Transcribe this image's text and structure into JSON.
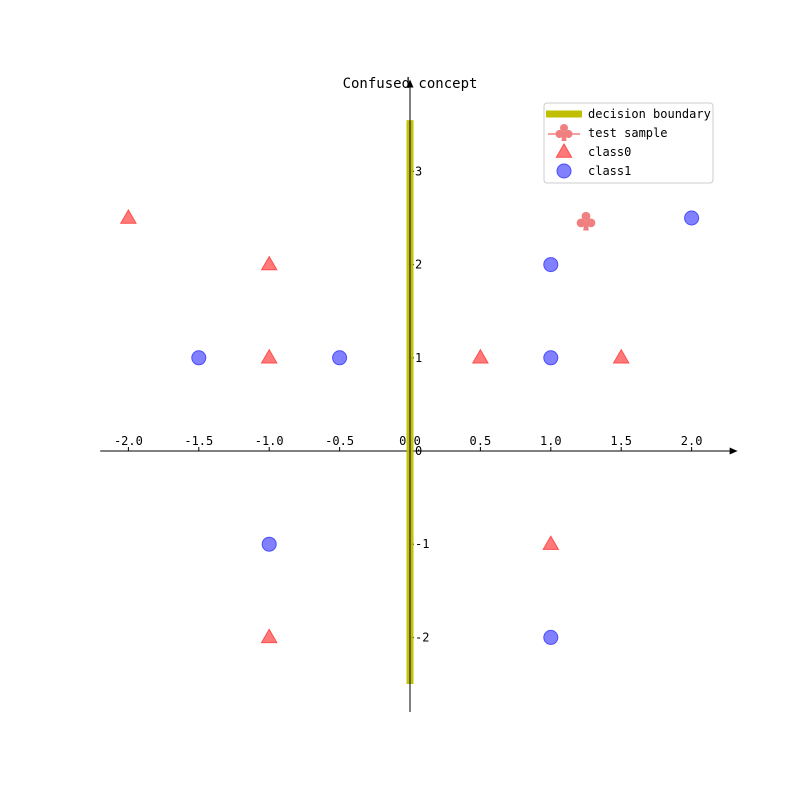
{
  "chart_data": {
    "type": "scatter",
    "title": "Confused concept",
    "xlabel": "",
    "ylabel": "",
    "xlim": [
      -2.2,
      2.27
    ],
    "ylim": [
      -2.8,
      3.9
    ],
    "grid": false,
    "legend_position": "top-right",
    "x_ticks": [
      -2.0,
      -1.5,
      -1.0,
      -0.5,
      0.0,
      0.5,
      1.0,
      1.5,
      2.0
    ],
    "x_tick_labels": [
      "-2.0",
      "-1.5",
      "-1.0",
      "-0.5",
      "0.0",
      "0.5",
      "1.0",
      "1.5",
      "2.0"
    ],
    "y_ticks": [
      -2,
      -1,
      0,
      1,
      2,
      3
    ],
    "y_tick_labels": [
      "-2",
      "-1",
      "0",
      "1",
      "2",
      "3"
    ],
    "decision_boundary": {
      "name": "decision boundary",
      "x": 0.0,
      "y_range": [
        -2.5,
        3.55
      ],
      "color": "#bfbf00"
    },
    "test_sample": {
      "name": "test sample",
      "x": 1.25,
      "y": 2.45,
      "color": "#f08080",
      "marker": "club"
    },
    "series": [
      {
        "name": "class0",
        "marker": "triangle",
        "color": "#ff4c4c",
        "points": [
          {
            "x": -2.0,
            "y": 2.5
          },
          {
            "x": -1.0,
            "y": 2.0
          },
          {
            "x": -1.0,
            "y": 1.0
          },
          {
            "x": 0.5,
            "y": 1.0
          },
          {
            "x": 1.5,
            "y": 1.0
          },
          {
            "x": 1.0,
            "y": -1.0
          },
          {
            "x": -1.0,
            "y": -2.0
          }
        ]
      },
      {
        "name": "class1",
        "marker": "circle",
        "color": "#4c4cff",
        "points": [
          {
            "x": -1.5,
            "y": 1.0
          },
          {
            "x": -0.5,
            "y": 1.0
          },
          {
            "x": 1.0,
            "y": 2.0
          },
          {
            "x": 1.0,
            "y": 1.0
          },
          {
            "x": 2.0,
            "y": 2.5
          },
          {
            "x": -1.0,
            "y": -1.0
          },
          {
            "x": 1.0,
            "y": -2.0
          }
        ]
      }
    ]
  }
}
